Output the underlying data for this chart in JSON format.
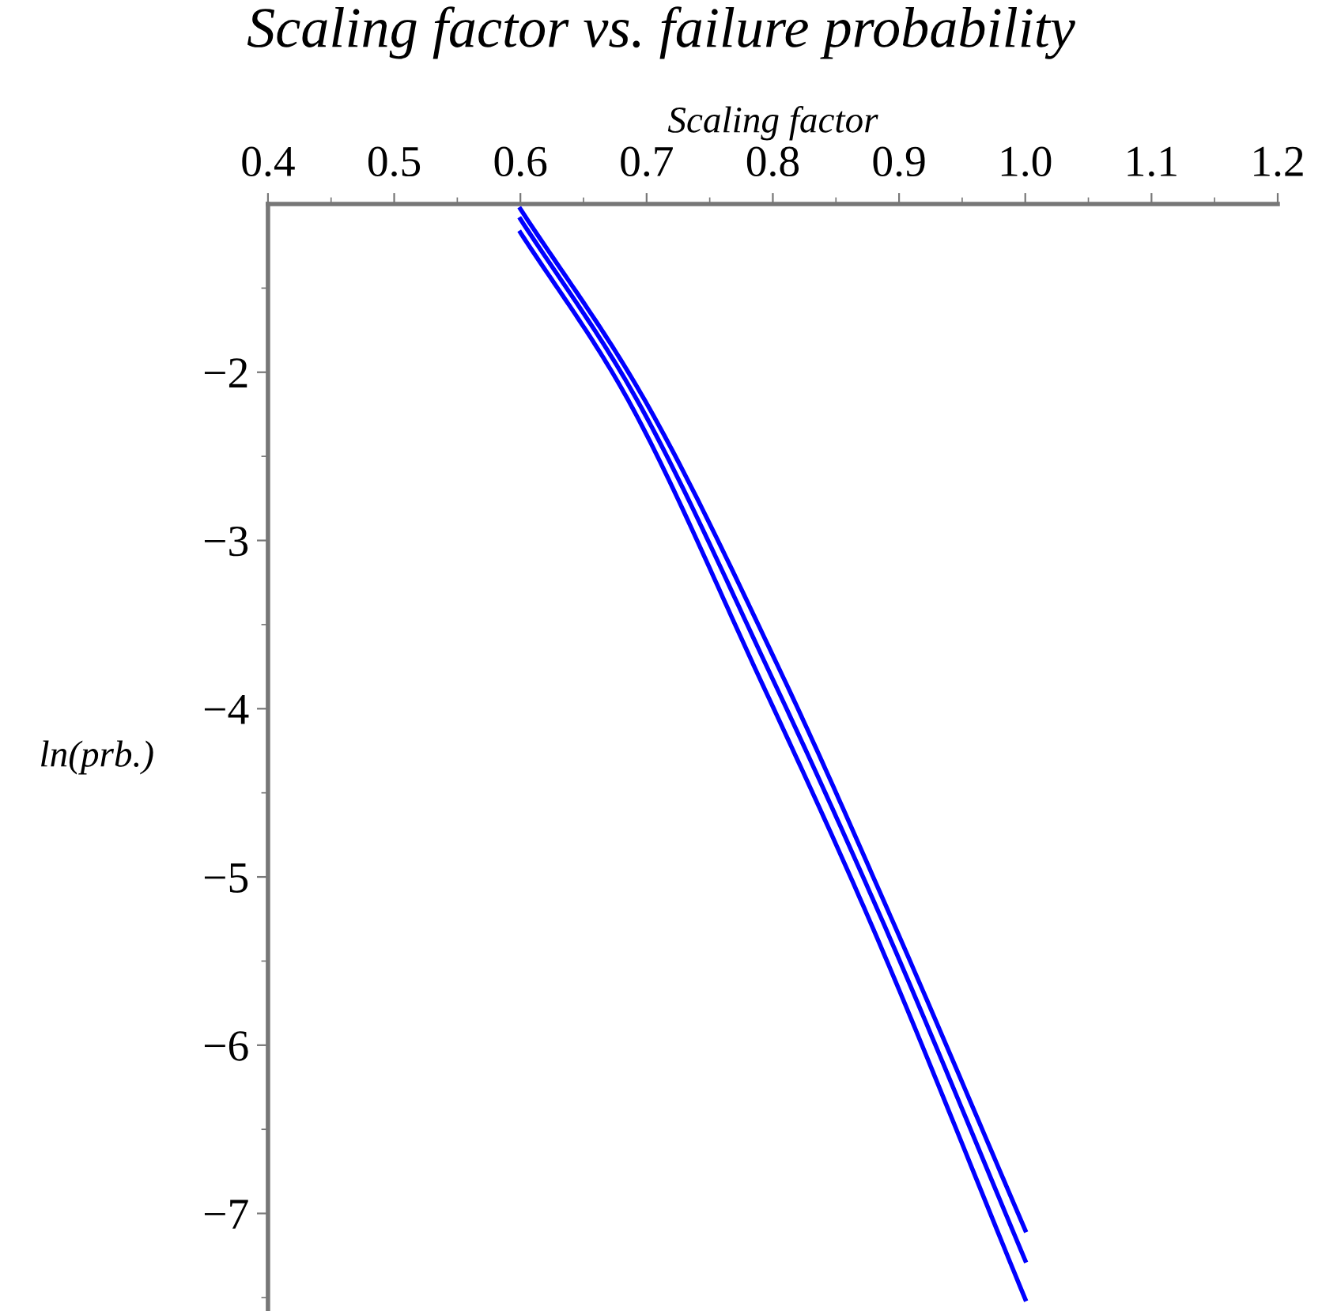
{
  "chart_data": {
    "type": "line",
    "title": "Scaling factor vs. failure probability",
    "xlabel": "Scaling factor",
    "ylabel": "ln(prb.)",
    "series": [
      {
        "color": "#0000ff",
        "x": [
          0.6,
          0.695,
          0.808,
          0.893,
          1.0
        ],
        "values": [
          -1.03,
          -2.12,
          -3.81,
          -5.23,
          -7.1
        ]
      },
      {
        "color": "#0000ff",
        "x": [
          0.6,
          0.689,
          0.799,
          0.885,
          1.0
        ],
        "values": [
          -1.09,
          -2.12,
          -3.81,
          -5.23,
          -7.28
        ]
      },
      {
        "color": "#0000ff",
        "x": [
          0.6,
          0.682,
          0.789,
          0.875,
          1.0
        ],
        "values": [
          -1.17,
          -2.12,
          -3.81,
          -5.23,
          -7.51
        ]
      }
    ],
    "xlim": [
      0.4,
      1.2
    ],
    "xticks": [
      0.4,
      0.5,
      0.6,
      0.7,
      0.8,
      0.9,
      {
        "value": 1.0,
        "label": "1.0"
      },
      1.1,
      1.2
    ],
    "ylim": [
      -7.58,
      -1
    ],
    "yticks": [
      {
        "value": -2,
        "label": "−2"
      },
      {
        "value": -3,
        "label": "−3"
      },
      {
        "value": -4,
        "label": "−4"
      },
      {
        "value": -5,
        "label": "−5"
      },
      {
        "value": -6,
        "label": "−6"
      },
      {
        "value": -7,
        "label": "−7"
      }
    ],
    "grid": false,
    "marker": "none",
    "line_style": "solid"
  }
}
